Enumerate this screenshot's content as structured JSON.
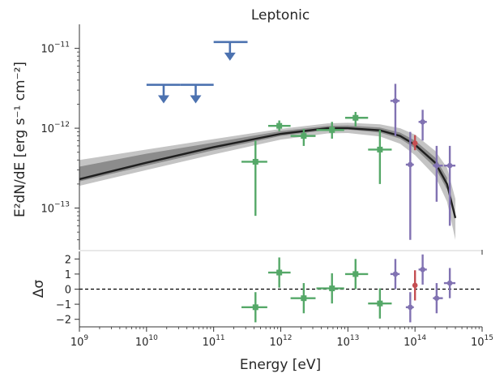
{
  "chart_data": [
    {
      "panel": "sed",
      "type": "scatter",
      "title": "Leptonic",
      "xlabel": "",
      "ylabel": "E²dN/dE [erg s⁻¹ cm⁻²]",
      "xscale": "log",
      "yscale": "log",
      "xlim": [
        1000000000.0,
        1000000000000000.0
      ],
      "ylim": [
        3e-14,
        2e-11
      ],
      "y_ticks": [
        {
          "value": 1e-11,
          "mant": "10",
          "exp": "−11"
        },
        {
          "value": 1e-12,
          "mant": "10",
          "exp": "−12"
        },
        {
          "value": 1e-13,
          "mant": "10",
          "exp": "−13"
        }
      ],
      "model_curve": {
        "x": [
          1000000000.0,
          10000000000.0,
          100000000000.0,
          1000000000000.0,
          5000000000000.0,
          10000000000000.0,
          30000000000000.0,
          60000000000000.0,
          100000000000000.0,
          200000000000000.0,
          300000000000000.0,
          400000000000000.0
        ],
        "y": [
          2.3e-13,
          3.7e-13,
          5.8e-13,
          8.5e-13,
          1e-12,
          1e-12,
          9.4e-13,
          8e-13,
          6.2e-13,
          3.7e-13,
          2e-13,
          7.5e-14
        ],
        "color": "#1f1f1f"
      },
      "band_outer": {
        "x": [
          1000000000.0,
          10000000000.0,
          100000000000.0,
          1000000000000.0,
          5000000000000.0,
          10000000000000.0,
          30000000000000.0,
          60000000000000.0,
          100000000000000.0,
          200000000000000.0,
          300000000000000.0,
          400000000000000.0
        ],
        "lo": [
          1.9e-13,
          3e-13,
          4.7e-13,
          7.2e-13,
          8.6e-13,
          8.7e-13,
          7.9e-13,
          6.4e-13,
          4.6e-13,
          2.5e-13,
          1.2e-13,
          4e-14
        ],
        "hi": [
          4e-13,
          5.4e-13,
          7.3e-13,
          9.8e-13,
          1.15e-12,
          1.17e-12,
          1.12e-12,
          1e-12,
          8.3e-13,
          5.2e-13,
          3.2e-13,
          1.3e-13
        ],
        "color": "#c4c4c4"
      },
      "band_inner": {
        "x": [
          1000000000.0,
          10000000000.0,
          100000000000.0,
          1000000000000.0,
          5000000000000.0,
          10000000000000.0,
          30000000000000.0,
          60000000000000.0,
          100000000000000.0,
          200000000000000.0,
          300000000000000.0
        ],
        "lo": [
          2.15e-13,
          3.4e-13,
          5.3e-13,
          8e-13,
          9.5e-13,
          9.6e-13,
          8.8e-13,
          7.4e-13,
          5.6e-13,
          3.2e-13,
          1.7e-13
        ],
        "hi": [
          3.3e-13,
          4.8e-13,
          6.6e-13,
          9.2e-13,
          1.07e-12,
          1.08e-12,
          1.02e-12,
          8.8e-13,
          7e-13,
          4.3e-13,
          2.4e-13
        ],
        "color": "#8c8c8c"
      },
      "upper_limits": {
        "color": "#4c72b0",
        "points": [
          {
            "x": 18000000000.0,
            "y": 3.5e-12,
            "xlo": 10000000000.0,
            "xhi": 32000000000.0
          },
          {
            "x": 54000000000.0,
            "y": 3.5e-12,
            "xlo": 32000000000.0,
            "xhi": 100000000000.0
          },
          {
            "x": 175000000000.0,
            "y": 1.2e-11,
            "xlo": 100000000000.0,
            "xhi": 320000000000.0
          }
        ]
      },
      "series": [
        {
          "color": "#55a868",
          "marker": "square",
          "points": [
            {
              "x": 420000000000.0,
              "y": 3.8e-13,
              "xlo": 260000000000.0,
              "xhi": 630000000000.0,
              "ylo": 8e-14,
              "yhi": 7e-13
            },
            {
              "x": 950000000000.0,
              "y": 1.07e-12,
              "xlo": 650000000000.0,
              "xhi": 1400000000000.0,
              "ylo": 9.2e-13,
              "yhi": 1.25e-12
            },
            {
              "x": 2200000000000.0,
              "y": 8e-13,
              "xlo": 1400000000000.0,
              "xhi": 3300000000000.0,
              "ylo": 6e-13,
              "yhi": 9.8e-13
            },
            {
              "x": 5800000000000.0,
              "y": 9.5e-13,
              "xlo": 3400000000000.0,
              "xhi": 8800000000000.0,
              "ylo": 7.4e-13,
              "yhi": 1.2e-12
            },
            {
              "x": 13000000000000.0,
              "y": 1.35e-12,
              "xlo": 9100000000000.0,
              "xhi": 20000000000000.0,
              "ylo": 1.05e-12,
              "yhi": 1.6e-12
            },
            {
              "x": 30000000000000.0,
              "y": 5.4e-13,
              "xlo": 20000000000000.0,
              "xhi": 45000000000000.0,
              "ylo": 2e-13,
              "yhi": 9.5e-13
            }
          ]
        },
        {
          "color": "#c44e52",
          "marker": "circle",
          "points": [
            {
              "x": 100000000000000.0,
              "y": 6.5e-13,
              "xlo": 100000000000000.0,
              "xhi": 100000000000000.0,
              "ylo": 5.3e-13,
              "yhi": 8.2e-13
            }
          ]
        },
        {
          "color": "#8172b2",
          "marker": "circle",
          "points": [
            {
              "x": 51000000000000.0,
              "y": 2.2e-12,
              "xlo": 43000000000000.0,
              "xhi": 59000000000000.0,
              "ylo": 8e-13,
              "yhi": 3.6e-12
            },
            {
              "x": 85000000000000.0,
              "y": 3.5e-13,
              "xlo": 73000000000000.0,
              "xhi": 96000000000000.0,
              "ylo": 4e-14,
              "yhi": 9e-13
            },
            {
              "x": 130000000000000.0,
              "y": 1.2e-12,
              "xlo": 113000000000000.0,
              "xhi": 150000000000000.0,
              "ylo": 7e-13,
              "yhi": 1.7e-12
            },
            {
              "x": 210000000000000.0,
              "y": 3.4e-13,
              "xlo": 185000000000000.0,
              "xhi": 260000000000000.0,
              "ylo": 1.2e-13,
              "yhi": 6e-13
            },
            {
              "x": 330000000000000.0,
              "y": 3.4e-13,
              "xlo": 270000000000000.0,
              "xhi": 400000000000000.0,
              "ylo": 6e-14,
              "yhi": 6e-13
            }
          ]
        }
      ]
    },
    {
      "panel": "residuals",
      "type": "scatter",
      "xlabel": "Energy [eV]",
      "ylabel": "Δσ",
      "xscale": "log",
      "xlim": [
        1000000000.0,
        1000000000000000.0
      ],
      "ylim": [
        -2.5,
        2.5
      ],
      "y_ticks": [
        2,
        1,
        0,
        -1,
        -2
      ],
      "y_tick_labels": [
        "2",
        "1",
        "0",
        "−1",
        "−2"
      ],
      "x_ticks": [
        {
          "value": 1000000000.0,
          "mant": "10",
          "exp": "9"
        },
        {
          "value": 10000000000.0,
          "mant": "10",
          "exp": "10"
        },
        {
          "value": 100000000000.0,
          "mant": "10",
          "exp": "11"
        },
        {
          "value": 1000000000000.0,
          "mant": "10",
          "exp": "12"
        },
        {
          "value": 10000000000000.0,
          "mant": "10",
          "exp": "13"
        },
        {
          "value": 100000000000000.0,
          "mant": "10",
          "exp": "14"
        },
        {
          "value": 1000000000000000.0,
          "mant": "10",
          "exp": "15"
        }
      ],
      "zero_line": {
        "y": 0,
        "style": "dashed"
      },
      "series": [
        {
          "color": "#55a868",
          "marker": "square",
          "points": [
            {
              "x": 420000000000.0,
              "y": -1.2,
              "xlo": 260000000000.0,
              "xhi": 630000000000.0,
              "ylo": -2.2,
              "yhi": -0.2
            },
            {
              "x": 950000000000.0,
              "y": 1.1,
              "xlo": 650000000000.0,
              "xhi": 1400000000000.0,
              "ylo": 0.1,
              "yhi": 2.1
            },
            {
              "x": 2200000000000.0,
              "y": -0.6,
              "xlo": 1400000000000.0,
              "xhi": 3300000000000.0,
              "ylo": -1.6,
              "yhi": 0.4
            },
            {
              "x": 5800000000000.0,
              "y": 0.05,
              "xlo": 3400000000000.0,
              "xhi": 8800000000000.0,
              "ylo": -0.95,
              "yhi": 1.05
            },
            {
              "x": 13000000000000.0,
              "y": 1.0,
              "xlo": 9100000000000.0,
              "xhi": 20000000000000.0,
              "ylo": 0.0,
              "yhi": 2.0
            },
            {
              "x": 30000000000000.0,
              "y": -0.95,
              "xlo": 20000000000000.0,
              "xhi": 45000000000000.0,
              "ylo": -1.95,
              "yhi": 0.05
            }
          ]
        },
        {
          "color": "#c44e52",
          "marker": "circle",
          "points": [
            {
              "x": 100000000000000.0,
              "y": 0.25,
              "xlo": 100000000000000.0,
              "xhi": 100000000000000.0,
              "ylo": -0.75,
              "yhi": 1.25
            }
          ]
        },
        {
          "color": "#8172b2",
          "marker": "circle",
          "points": [
            {
              "x": 51000000000000.0,
              "y": 1.0,
              "xlo": 43000000000000.0,
              "xhi": 59000000000000.0,
              "ylo": 0.0,
              "yhi": 2.0
            },
            {
              "x": 85000000000000.0,
              "y": -1.2,
              "xlo": 73000000000000.0,
              "xhi": 96000000000000.0,
              "ylo": -2.2,
              "yhi": -0.2
            },
            {
              "x": 130000000000000.0,
              "y": 1.3,
              "xlo": 113000000000000.0,
              "xhi": 150000000000000.0,
              "ylo": 0.3,
              "yhi": 2.3
            },
            {
              "x": 210000000000000.0,
              "y": -0.6,
              "xlo": 185000000000000.0,
              "xhi": 260000000000000.0,
              "ylo": -1.6,
              "yhi": 0.4
            },
            {
              "x": 330000000000000.0,
              "y": 0.4,
              "xlo": 270000000000000.0,
              "xhi": 400000000000000.0,
              "ylo": -0.6,
              "yhi": 1.4
            }
          ]
        }
      ]
    }
  ]
}
